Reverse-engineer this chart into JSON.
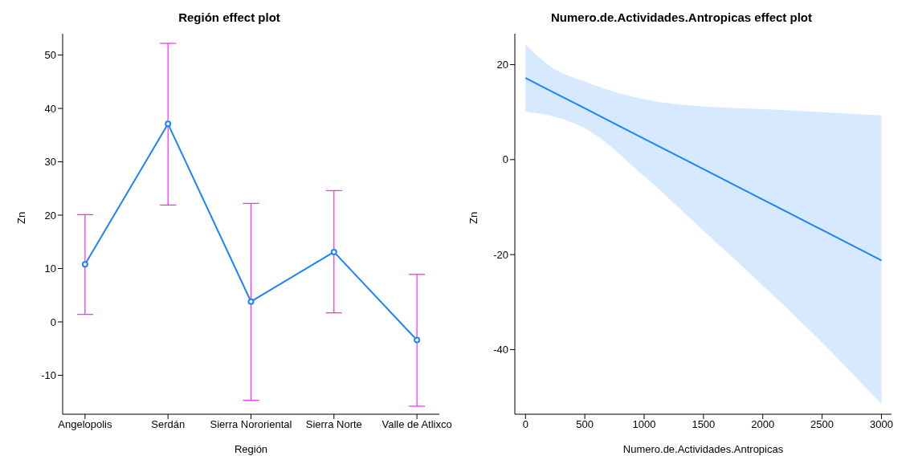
{
  "chart_data": [
    {
      "type": "line",
      "title": "Región effect plot",
      "xlabel": "Región",
      "ylabel": "Zn",
      "categories": [
        "Angelopolis",
        "Serdán",
        "Sierra Nororiental",
        "Sierra Norte",
        "Valle de Atlixco"
      ],
      "series": [
        {
          "color": "#1a84ff",
          "values": [
            10.8,
            37.1,
            3.8,
            13.1,
            -3.4
          ],
          "errors": [
            [
              1.4,
              20.1
            ],
            [
              21.9,
              52.2
            ],
            [
              -14.7,
              22.2
            ],
            [
              1.7,
              24.6
            ],
            [
              -15.8,
              8.9
            ]
          ]
        }
      ],
      "ylim": [
        -17.3,
        54
      ],
      "yticks": [
        -10,
        0,
        10,
        20,
        30,
        40,
        50
      ],
      "marker": "circle",
      "grid": false,
      "legend": false
    },
    {
      "type": "line",
      "title": "Numero.de.Actividades.Antropicas effect plot",
      "xlabel": "Numero.de.Actividades.Antropicas",
      "ylabel": "Zn",
      "series": [
        {
          "color": "#1a84ff",
          "x": [
            0,
            200,
            500,
            1000,
            1500,
            2000,
            2500,
            3000
          ],
          "values": [
            17.2,
            14.6,
            10.8,
            4.4,
            -2.0,
            -8.4,
            -14.8,
            -21.2
          ],
          "lower": [
            10.1,
            9.3,
            6.6,
            -3.5,
            -15.0,
            -26.5,
            -38.5,
            -51.5
          ],
          "upper": [
            24.2,
            19.8,
            16.4,
            12.7,
            11.2,
            10.6,
            10.0,
            9.3
          ]
        }
      ],
      "xlim": [
        -90,
        3085
      ],
      "xticks": [
        0,
        500,
        1000,
        1500,
        2000,
        2500,
        3000
      ],
      "ylim": [
        -53.6,
        26.5
      ],
      "yticks": [
        -40,
        -20,
        0,
        20
      ],
      "marker": "none",
      "grid": false,
      "legend": false
    }
  ]
}
